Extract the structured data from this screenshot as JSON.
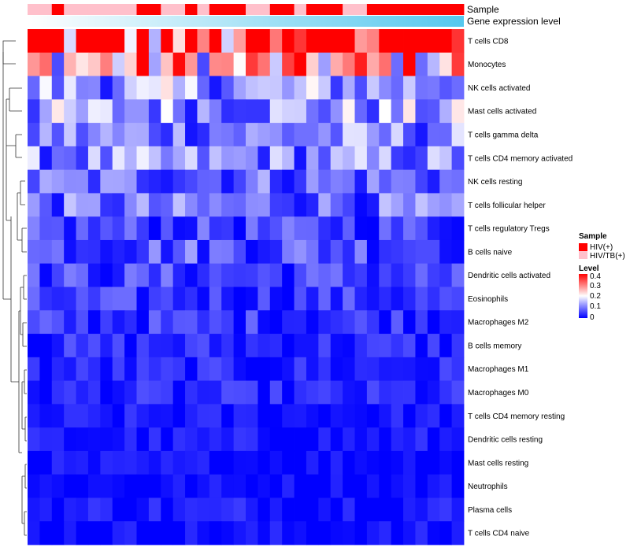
{
  "chart_data": {
    "type": "heatmap",
    "annotation_labels": {
      "sample": "Sample",
      "gene_expression": "Gene expression level"
    },
    "rows": [
      "T cells CD8",
      "Monocytes",
      "NK cells activated",
      "Mast cells activated",
      "T cells gamma delta",
      "T cells CD4 memory activated",
      "NK cells resting",
      "T cells follicular helper",
      "T cells regulatory  Tregs",
      "B cells naive",
      "Dendritic cells activated",
      "Eosinophils",
      "Macrophages M2",
      "B cells memory",
      "Macrophages M1",
      "Macrophages M0",
      "T cells CD4 memory resting",
      "Dendritic cells resting",
      "Mast cells resting",
      "Neutrophils",
      "Plasma cells",
      "T cells CD4 naive"
    ],
    "n_columns": 36,
    "samples": [
      "HIV/TB(+)",
      "HIV/TB(+)",
      "HIV(+)",
      "HIV/TB(+)",
      "HIV/TB(+)",
      "HIV/TB(+)",
      "HIV/TB(+)",
      "HIV/TB(+)",
      "HIV/TB(+)",
      "HIV(+)",
      "HIV(+)",
      "HIV/TB(+)",
      "HIV/TB(+)",
      "HIV(+)",
      "HIV/TB(+)",
      "HIV(+)",
      "HIV(+)",
      "HIV(+)",
      "HIV/TB(+)",
      "HIV/TB(+)",
      "HIV(+)",
      "HIV(+)",
      "HIV/TB(+)",
      "HIV(+)",
      "HIV(+)",
      "HIV(+)",
      "HIV/TB(+)",
      "HIV/TB(+)",
      "HIV(+)",
      "HIV(+)",
      "HIV(+)",
      "HIV(+)",
      "HIV(+)",
      "HIV(+)",
      "HIV(+)",
      "HIV(+)"
    ],
    "gene_expression_gradient": {
      "from": "#ffffff",
      "to": "#55c8ee"
    },
    "row_means": [
      0.34,
      0.24,
      0.12,
      0.12,
      0.1,
      0.1,
      0.08,
      0.08,
      0.05,
      0.07,
      0.05,
      0.04,
      0.04,
      0.03,
      0.025,
      0.025,
      0.015,
      0.015,
      0.01,
      0.008,
      0.02,
      0.01
    ],
    "color_scale": {
      "low": "#0000ff",
      "mid": "#ffffff",
      "high": "#ff0000",
      "range": [
        0,
        0.4
      ],
      "mid_value": 0.2
    },
    "legend": {
      "sample_title": "Sample",
      "sample_entries": [
        {
          "label": "HIV(+)",
          "color": "#ff0000"
        },
        {
          "label": "HIV/TB(+)",
          "color": "#ffc0cb"
        }
      ],
      "level_title": "Level",
      "level_ticks": [
        "0.4",
        "0.3",
        "0.2",
        "0.1",
        "0"
      ]
    }
  }
}
